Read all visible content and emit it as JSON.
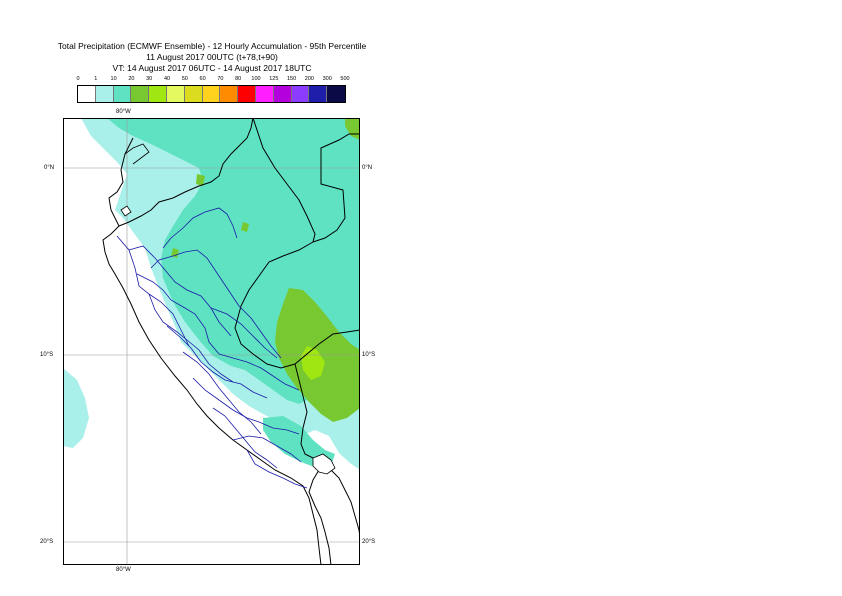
{
  "title": {
    "line1": "Total Precipitation (ECMWF Ensemble) - 12 Hourly Accumulation - 95th Percentile",
    "line2": "11 August 2017 00UTC (t+78,t+90)",
    "line3": "VT: 14 August 2017 06UTC - 14 August 2017 18UTC"
  },
  "legend": {
    "ticks": [
      "0",
      "1",
      "10",
      "20",
      "30",
      "40",
      "50",
      "60",
      "70",
      "80",
      "100",
      "125",
      "150",
      "200",
      "300",
      "500"
    ],
    "colors": [
      "#ffffff",
      "#aaf0ea",
      "#5fe2c1",
      "#78c832",
      "#a0e610",
      "#e4f860",
      "#dcdc1e",
      "#ffd21e",
      "#ff8c00",
      "#ff0000",
      "#ff1eff",
      "#b400dc",
      "#8c3cff",
      "#1e1eaa",
      "#0a0a46"
    ]
  },
  "map": {
    "lon_labels": {
      "top": "80°W",
      "bottom": "80°W"
    },
    "lat_labels": [
      {
        "left": "0°N",
        "right": "0°N"
      },
      {
        "left": "10°S",
        "right": "10°S"
      },
      {
        "left": "20°S",
        "right": "20°S"
      }
    ],
    "colors": {
      "light_cyan": "#aaf0ea",
      "green_cyan": "#5fe2c1",
      "green": "#78c832",
      "lime": "#a0e610",
      "country_border": "#000000",
      "region_border": "#1a1aa8",
      "gridline": "#9a9a9a"
    }
  }
}
